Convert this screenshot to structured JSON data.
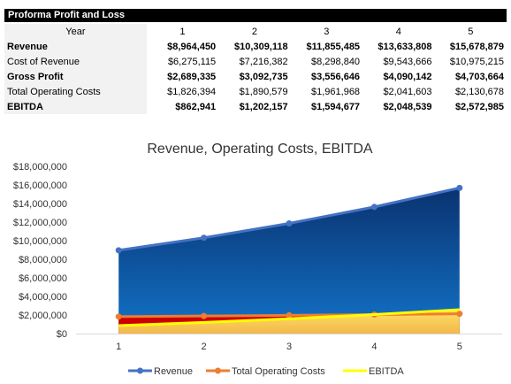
{
  "table": {
    "title": "Proforma Profit and Loss",
    "header": {
      "label": "Year",
      "years": [
        "1",
        "2",
        "3",
        "4",
        "5"
      ]
    },
    "rows": [
      {
        "label": "Revenue",
        "values": [
          "$8,964,450",
          "$10,309,118",
          "$11,855,485",
          "$13,633,808",
          "$15,678,879"
        ]
      },
      {
        "label": "Cost of Revenue",
        "values": [
          "$6,275,115",
          "$7,216,382",
          "$8,298,840",
          "$9,543,666",
          "$10,975,215"
        ]
      },
      {
        "label": "Gross Profit",
        "values": [
          "$2,689,335",
          "$3,092,735",
          "$3,556,646",
          "$4,090,142",
          "$4,703,664"
        ]
      },
      {
        "label": "Total Operating Costs",
        "values": [
          "$1,826,394",
          "$1,890,579",
          "$1,961,968",
          "$2,041,603",
          "$2,130,678"
        ]
      },
      {
        "label": "EBITDA",
        "values": [
          "$862,941",
          "$1,202,157",
          "$1,594,677",
          "$2,048,539",
          "$2,572,985"
        ]
      }
    ]
  },
  "chart_data": {
    "type": "area",
    "title": "Revenue, Operating Costs, EBITDA",
    "xlabel": "",
    "ylabel": "",
    "categories": [
      "1",
      "2",
      "3",
      "4",
      "5"
    ],
    "ylim": [
      0,
      18000000
    ],
    "yticks": [
      0,
      2000000,
      4000000,
      6000000,
      8000000,
      10000000,
      12000000,
      14000000,
      16000000,
      18000000
    ],
    "ytick_labels": [
      "$0",
      "$2,000,000",
      "$4,000,000",
      "$6,000,000",
      "$8,000,000",
      "$10,000,000",
      "$12,000,000",
      "$14,000,000",
      "$16,000,000",
      "$18,000,000"
    ],
    "grid": false,
    "legend_position": "bottom",
    "series": [
      {
        "name": "Revenue",
        "values": [
          8964450,
          10309118,
          11855485,
          13633808,
          15678879
        ],
        "line_color": "#4472c4",
        "fill_color": "#0b5cad"
      },
      {
        "name": "Total Operating Costs",
        "values": [
          1826394,
          1890579,
          1961968,
          2041603,
          2130678
        ],
        "line_color": "#ed7d31",
        "fill_color": "#cc0000"
      },
      {
        "name": "EBITDA",
        "values": [
          862941,
          1202157,
          1594677,
          2048539,
          2572985
        ],
        "line_color": "#ffff00",
        "fill_color": "#f5c543"
      }
    ]
  }
}
